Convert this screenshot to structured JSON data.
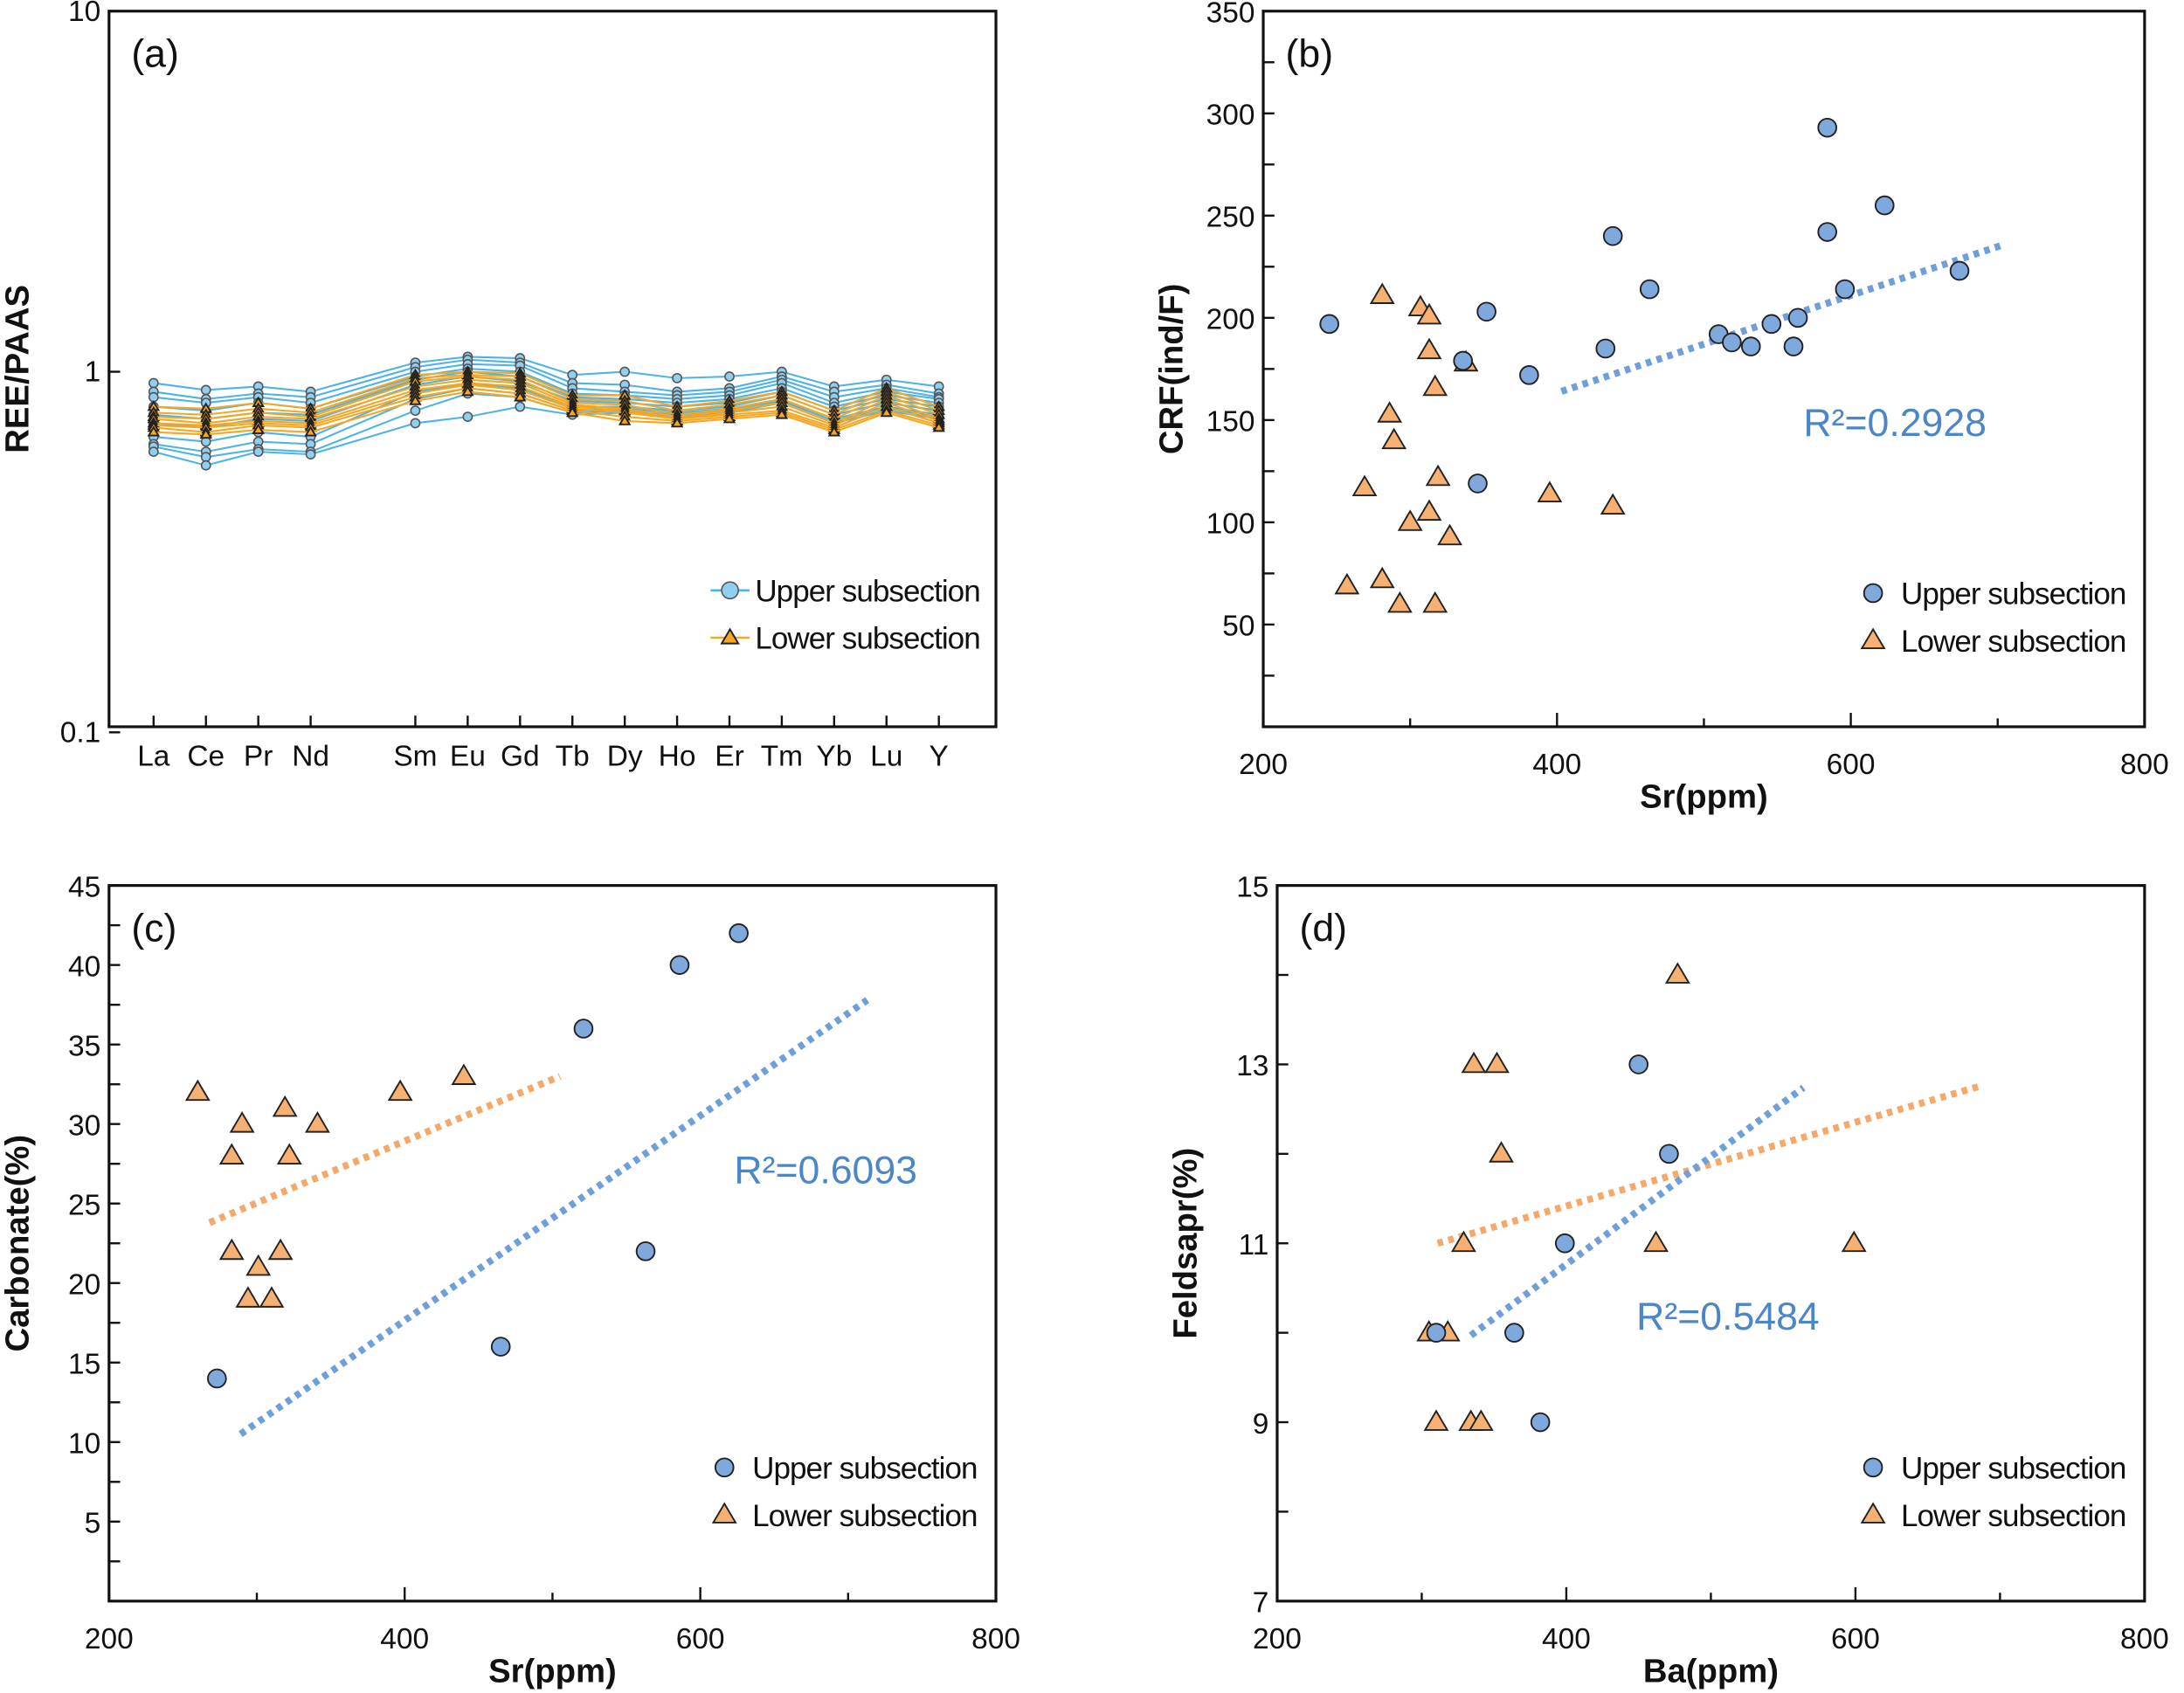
{
  "colors": {
    "upper_fill": "#7fa9dc",
    "upper_line": "#4db3e6",
    "upper_circle_a": "#8fd0f0",
    "lower_fill": "#f6b071",
    "lower_line": "#f5a623",
    "upper_trend": "#6f9fd8",
    "lower_trend": "#f4a96a",
    "r2_text": "#4a86c8"
  },
  "chart_data": [
    {
      "type": "line",
      "panel_label": "(a)",
      "ylabel": "REE/PAAS",
      "xlabel": "",
      "yscale": "log",
      "ylim": [
        0.1,
        10
      ],
      "yticks": [
        "0.1",
        "1",
        "10"
      ],
      "categories": [
        "La",
        "Ce",
        "Pr",
        "Nd",
        "Sm",
        "Eu",
        "Gd",
        "Tb",
        "Dy",
        "Ho",
        "Er",
        "Tm",
        "Yb",
        "Lu",
        "Y"
      ],
      "legend": {
        "position": "bottom-right",
        "entries": [
          "Upper subsection",
          "Lower subsection"
        ]
      },
      "series": [
        {
          "group": "upper",
          "values": [
            0.93,
            0.89,
            0.91,
            0.88,
            1.06,
            1.1,
            1.09,
            0.98,
            1.0,
            0.96,
            0.97,
            1.0,
            0.91,
            0.95,
            0.91
          ]
        },
        {
          "group": "upper",
          "values": [
            0.88,
            0.84,
            0.87,
            0.85,
            1.03,
            1.08,
            1.06,
            0.93,
            0.92,
            0.88,
            0.9,
            0.97,
            0.88,
            0.92,
            0.87
          ]
        },
        {
          "group": "upper",
          "values": [
            0.85,
            0.82,
            0.85,
            0.82,
            1.0,
            1.05,
            1.04,
            0.9,
            0.88,
            0.86,
            0.88,
            0.95,
            0.85,
            0.9,
            0.85
          ]
        },
        {
          "group": "upper",
          "values": [
            0.8,
            0.78,
            0.82,
            0.79,
            0.97,
            1.02,
            1.0,
            0.87,
            0.86,
            0.84,
            0.86,
            0.93,
            0.82,
            0.88,
            0.84
          ]
        },
        {
          "group": "upper",
          "values": [
            0.76,
            0.74,
            0.77,
            0.76,
            0.95,
            1.0,
            0.97,
            0.85,
            0.84,
            0.82,
            0.84,
            0.9,
            0.8,
            0.86,
            0.82
          ]
        },
        {
          "group": "upper",
          "values": [
            0.72,
            0.7,
            0.74,
            0.73,
            0.92,
            0.97,
            0.94,
            0.83,
            0.82,
            0.8,
            0.82,
            0.88,
            0.78,
            0.84,
            0.8
          ]
        },
        {
          "group": "upper",
          "values": [
            0.66,
            0.64,
            0.68,
            0.66,
            0.88,
            0.93,
            0.9,
            0.8,
            0.8,
            0.78,
            0.8,
            0.86,
            0.76,
            0.82,
            0.78
          ]
        },
        {
          "group": "upper",
          "values": [
            0.63,
            0.6,
            0.64,
            0.63,
            0.84,
            0.9,
            0.87,
            0.78,
            0.79,
            0.77,
            0.79,
            0.84,
            0.74,
            0.8,
            0.76
          ]
        },
        {
          "group": "upper",
          "values": [
            0.62,
            0.58,
            0.61,
            0.6,
            0.78,
            0.87,
            0.85,
            0.77,
            0.78,
            0.76,
            0.78,
            0.83,
            0.73,
            0.79,
            0.75
          ]
        },
        {
          "group": "upper",
          "values": [
            0.6,
            0.55,
            0.6,
            0.59,
            0.72,
            0.75,
            0.8,
            0.76,
            0.77,
            0.75,
            0.77,
            0.82,
            0.72,
            0.78,
            0.74
          ]
        },
        {
          "group": "lower",
          "values": [
            0.8,
            0.79,
            0.82,
            0.79,
            0.98,
            1.0,
            0.99,
            0.86,
            0.86,
            0.8,
            0.83,
            0.88,
            0.78,
            0.9,
            0.8
          ]
        },
        {
          "group": "lower",
          "values": [
            0.77,
            0.76,
            0.79,
            0.77,
            0.96,
            0.98,
            0.97,
            0.84,
            0.83,
            0.78,
            0.81,
            0.86,
            0.76,
            0.88,
            0.78
          ]
        },
        {
          "group": "lower",
          "values": [
            0.75,
            0.74,
            0.77,
            0.75,
            0.94,
            0.97,
            0.95,
            0.82,
            0.81,
            0.76,
            0.79,
            0.84,
            0.74,
            0.86,
            0.76
          ]
        },
        {
          "group": "lower",
          "values": [
            0.74,
            0.72,
            0.75,
            0.74,
            0.91,
            0.95,
            0.93,
            0.81,
            0.79,
            0.75,
            0.78,
            0.82,
            0.72,
            0.84,
            0.74
          ]
        },
        {
          "group": "lower",
          "values": [
            0.72,
            0.71,
            0.73,
            0.72,
            0.89,
            0.93,
            0.91,
            0.8,
            0.78,
            0.74,
            0.77,
            0.8,
            0.71,
            0.82,
            0.73
          ]
        },
        {
          "group": "lower",
          "values": [
            0.71,
            0.7,
            0.72,
            0.71,
            0.87,
            0.92,
            0.89,
            0.79,
            0.77,
            0.74,
            0.76,
            0.78,
            0.7,
            0.8,
            0.72
          ]
        },
        {
          "group": "lower",
          "values": [
            0.7,
            0.68,
            0.71,
            0.7,
            0.85,
            0.9,
            0.87,
            0.78,
            0.75,
            0.73,
            0.75,
            0.77,
            0.69,
            0.78,
            0.71
          ]
        },
        {
          "group": "lower",
          "values": [
            0.68,
            0.67,
            0.69,
            0.68,
            0.83,
            0.88,
            0.85,
            0.77,
            0.73,
            0.72,
            0.74,
            0.76,
            0.68,
            0.77,
            0.7
          ]
        }
      ]
    },
    {
      "type": "scatter",
      "panel_label": "(b)",
      "xlabel": "Sr(ppm)",
      "ylabel": "CRF(ind/F)",
      "xlim": [
        200,
        800
      ],
      "ylim": [
        0,
        350
      ],
      "xticks": [
        200,
        400,
        600,
        800
      ],
      "yticks": [
        50,
        100,
        150,
        200,
        250,
        300,
        350
      ],
      "r2_label": "R²=0.2928",
      "legend": {
        "position": "bottom-right",
        "entries": [
          "Upper subsection",
          "Lower subsection"
        ]
      },
      "upper": [
        [
          245,
          197
        ],
        [
          336,
          179
        ],
        [
          346,
          119
        ],
        [
          352,
          203
        ],
        [
          381,
          172
        ],
        [
          433,
          185
        ],
        [
          438,
          240
        ],
        [
          463,
          214
        ],
        [
          510,
          192
        ],
        [
          519,
          188
        ],
        [
          532,
          186
        ],
        [
          546,
          197
        ],
        [
          561,
          186
        ],
        [
          564,
          200
        ],
        [
          584,
          293
        ],
        [
          584,
          242
        ],
        [
          596,
          214
        ],
        [
          623,
          255
        ],
        [
          674,
          223
        ]
      ],
      "lower": [
        [
          257,
          69
        ],
        [
          269,
          117
        ],
        [
          281,
          72
        ],
        [
          281,
          211
        ],
        [
          286,
          153
        ],
        [
          289,
          140
        ],
        [
          293,
          60
        ],
        [
          300,
          100
        ],
        [
          307,
          205
        ],
        [
          313,
          201
        ],
        [
          313,
          105
        ],
        [
          313,
          184
        ],
        [
          317,
          166
        ],
        [
          317,
          60
        ],
        [
          319,
          122
        ],
        [
          327,
          93
        ],
        [
          338,
          178
        ],
        [
          395,
          114
        ],
        [
          438,
          108
        ]
      ],
      "trend_upper": [
        [
          403,
          164
        ],
        [
          705,
          236
        ]
      ]
    },
    {
      "type": "scatter",
      "panel_label": "(c)",
      "xlabel": "Sr(ppm)",
      "ylabel": "Carbonate(%)",
      "xlim": [
        200,
        800
      ],
      "ylim": [
        0,
        45
      ],
      "xticks": [
        200,
        400,
        600,
        800
      ],
      "yticks": [
        5,
        10,
        15,
        20,
        25,
        30,
        35,
        40,
        45
      ],
      "r2_label": "R²=0.6093",
      "legend": {
        "position": "bottom-right",
        "entries": [
          "Upper subsection",
          "Lower subsection"
        ]
      },
      "upper": [
        [
          273,
          14
        ],
        [
          465,
          16
        ],
        [
          521,
          36
        ],
        [
          563,
          22
        ],
        [
          586,
          40
        ],
        [
          626,
          42
        ]
      ],
      "lower": [
        [
          260,
          32
        ],
        [
          283,
          28
        ],
        [
          290,
          30
        ],
        [
          283,
          22
        ],
        [
          294,
          19
        ],
        [
          301,
          21
        ],
        [
          310,
          19
        ],
        [
          316,
          22
        ],
        [
          319,
          31
        ],
        [
          322,
          28
        ],
        [
          341,
          30
        ],
        [
          397,
          32
        ],
        [
          440,
          33
        ]
      ],
      "trend_upper": [
        [
          289,
          10.5
        ],
        [
          713,
          37.8
        ]
      ],
      "trend_lower": [
        [
          268,
          23.8
        ],
        [
          505,
          33
        ]
      ]
    },
    {
      "type": "scatter",
      "panel_label": "(d)",
      "xlabel": "Ba(ppm)",
      "ylabel": "Feldsapr(%)",
      "xlim": [
        200,
        800
      ],
      "ylim": [
        7,
        15
      ],
      "xticks": [
        200,
        400,
        600,
        800
      ],
      "yticks": [
        7,
        9,
        11,
        13,
        15
      ],
      "r2_label": "R²=0.5484",
      "legend": {
        "position": "bottom-right",
        "entries": [
          "Upper subsection",
          "Lower subsection"
        ]
      },
      "upper": [
        [
          310,
          10
        ],
        [
          364,
          10
        ],
        [
          382,
          9
        ],
        [
          399,
          11
        ],
        [
          450,
          13
        ],
        [
          471,
          12
        ]
      ],
      "lower": [
        [
          305,
          10
        ],
        [
          318,
          10
        ],
        [
          310,
          9
        ],
        [
          334,
          9
        ],
        [
          341,
          9
        ],
        [
          329,
          11
        ],
        [
          336,
          13
        ],
        [
          352,
          13
        ],
        [
          355,
          12
        ],
        [
          462,
          11
        ],
        [
          477,
          14
        ],
        [
          599,
          11
        ]
      ],
      "trend_upper": [
        [
          334,
          9.97
        ],
        [
          564,
          12.74
        ]
      ],
      "trend_lower": [
        [
          311,
          11
        ],
        [
          687,
          12.76
        ]
      ]
    }
  ]
}
